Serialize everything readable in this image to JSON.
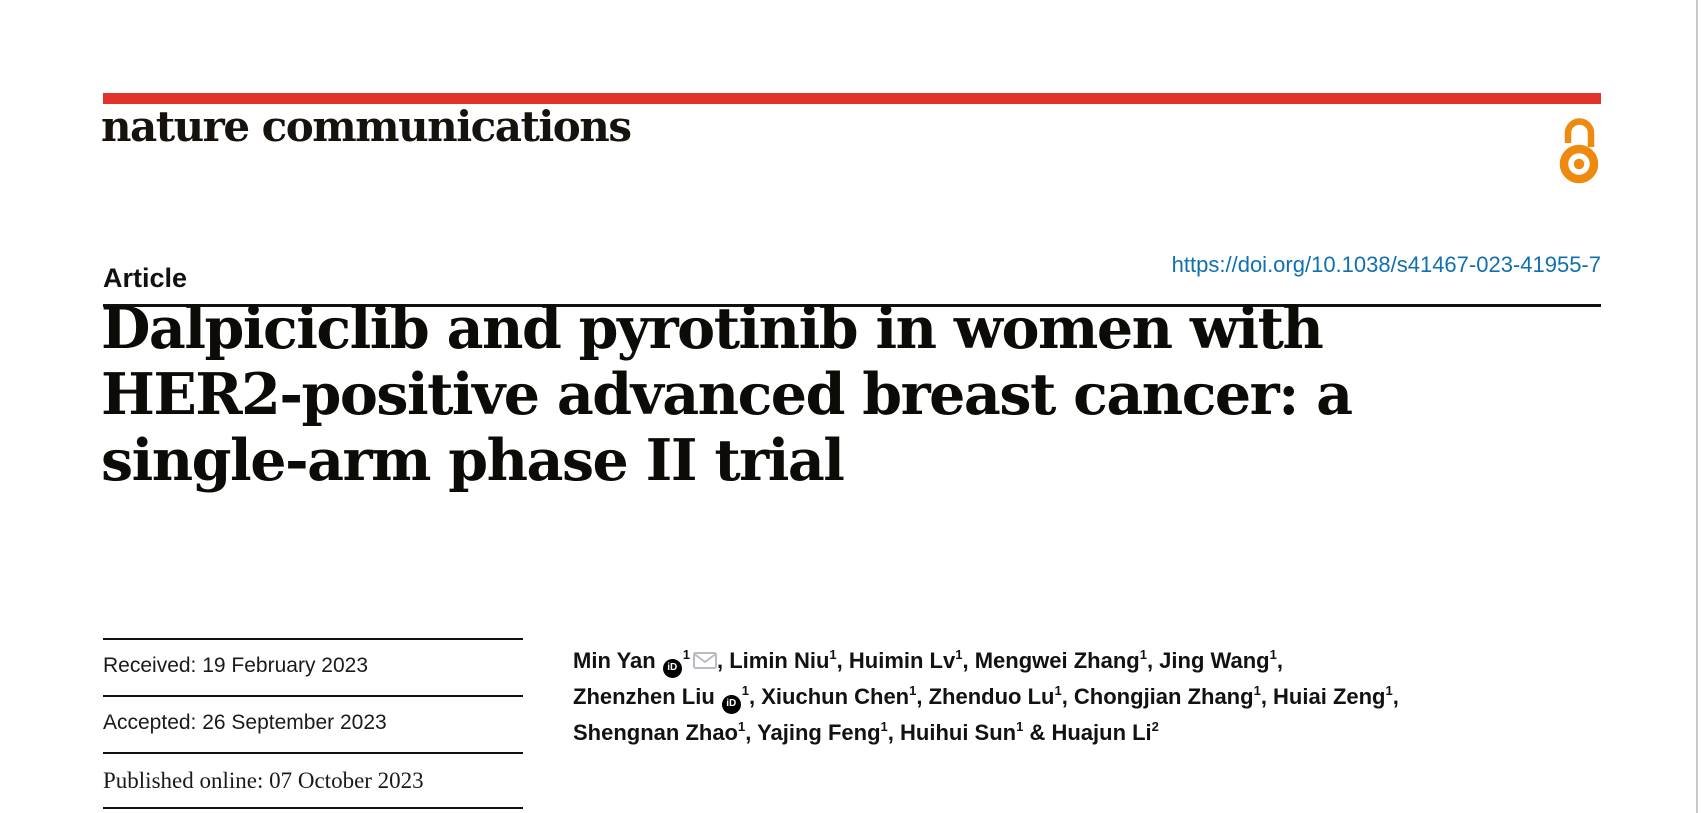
{
  "page": {
    "edge_color": "#c9c9cc"
  },
  "brand": {
    "journal_name": "nature communications",
    "bar_color": "#e2332a",
    "open_access_color": "#ee8a10",
    "open_access_icon": "open-lock-icon"
  },
  "article_header": {
    "type_label": "Article",
    "doi_link": "https://doi.org/10.1038/s41467-023-41955-7",
    "doi_color": "#1170b0"
  },
  "title": {
    "lines": [
      "Dalpiciclib and pyrotinib in women with",
      "HER2-positive advanced breast cancer: a",
      "single-arm phase II trial"
    ]
  },
  "dates": {
    "received": "Received: 19 February 2023",
    "accepted": "Accepted: 26 September 2023",
    "published": "Published online: 07 October 2023"
  },
  "authors": {
    "lines": [
      [
        {
          "name": "Min Yan",
          "orcid": true,
          "sup": "1",
          "email": true,
          "sep": ", "
        },
        {
          "name": "Limin Niu",
          "sup": "1",
          "sep": ", "
        },
        {
          "name": "Huimin Lv",
          "sup": "1",
          "sep": ", "
        },
        {
          "name": "Mengwei Zhang",
          "sup": "1",
          "sep": ", "
        },
        {
          "name": "Jing Wang",
          "sup": "1",
          "sep": ","
        }
      ],
      [
        {
          "name": "Zhenzhen Liu",
          "orcid": true,
          "sup": "1",
          "sep": ", "
        },
        {
          "name": "Xiuchun Chen",
          "sup": "1",
          "sep": ", "
        },
        {
          "name": "Zhenduo Lu",
          "sup": "1",
          "sep": ", "
        },
        {
          "name": "Chongjian Zhang",
          "sup": "1",
          "sep": ", "
        },
        {
          "name": "Huiai Zeng",
          "sup": "1",
          "sep": ","
        }
      ],
      [
        {
          "name": "Shengnan Zhao",
          "sup": "1",
          "sep": ", "
        },
        {
          "name": "Yajing Feng",
          "sup": "1",
          "sep": ", "
        },
        {
          "name": "Huihui Sun",
          "sup": "1",
          "sep": " & "
        },
        {
          "name": "Huajun Li",
          "sup": "2",
          "sep": ""
        }
      ]
    ]
  }
}
